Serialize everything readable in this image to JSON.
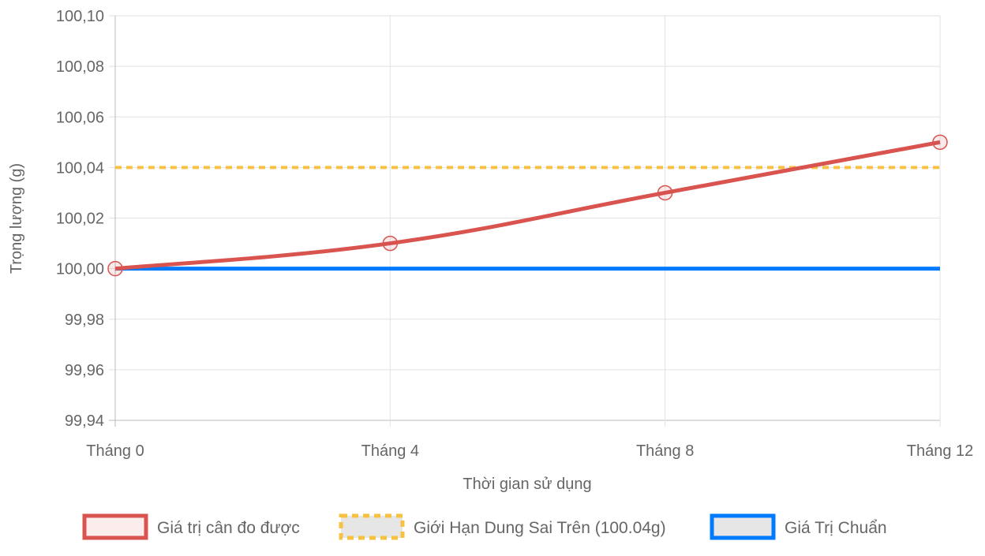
{
  "chart_data": {
    "type": "line",
    "title": "",
    "xlabel": "Thời gian sử dụng",
    "ylabel": "Trọng lượng (g)",
    "categories": [
      "Tháng 0",
      "Tháng 4",
      "Tháng 8",
      "Tháng 12"
    ],
    "ylim": [
      99.94,
      100.1
    ],
    "yticks": [
      100.1,
      100.08,
      100.06,
      100.04,
      100.02,
      100.0,
      99.98,
      99.96,
      99.94
    ],
    "ytick_labels": [
      "100,10",
      "100,08",
      "100,06",
      "100,04",
      "100,02",
      "100,00",
      "99,98",
      "99,96",
      "99,94"
    ],
    "grid": true,
    "legend_position": "bottom",
    "series": [
      {
        "name": "Giá trị cân đo được",
        "values": [
          100.0,
          100.01,
          100.03,
          100.05
        ],
        "color": "#d9534f",
        "style": "solid",
        "markers": true
      },
      {
        "name": "Giới Hạn Dung Sai Trên (100.04g)",
        "values": [
          100.04,
          100.04,
          100.04,
          100.04
        ],
        "color": "#f7c144",
        "style": "dashed",
        "markers": false
      },
      {
        "name": "Giá Trị Chuẩn",
        "values": [
          100.0,
          100.0,
          100.0,
          100.0
        ],
        "color": "#007bff",
        "style": "solid",
        "markers": false
      }
    ]
  }
}
